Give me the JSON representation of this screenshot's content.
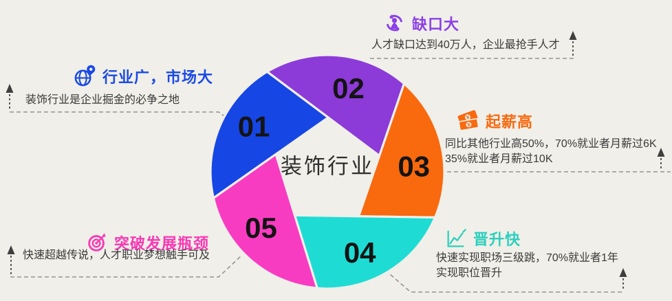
{
  "page": {
    "background": "#f0efe9",
    "text_color": "#3a3a3a"
  },
  "wheel": {
    "center_label": "装饰行业",
    "number_color": "#141414",
    "segments": [
      {
        "label": "01",
        "color": "#1646e4"
      },
      {
        "label": "02",
        "color": "#8c3ad8"
      },
      {
        "label": "03",
        "color": "#f9690e"
      },
      {
        "label": "04",
        "color": "#1edcd4"
      },
      {
        "label": "05",
        "color": "#f83cc2"
      }
    ]
  },
  "callouts": {
    "gap": {
      "title": "缺口大",
      "accent": "#8b40e8",
      "icon": "person-cycle-icon",
      "lines": [
        "人才缺口达到40万人，企业最抢手人才"
      ]
    },
    "industry": {
      "title": "行业广，市场大",
      "accent": "#1a4ae4",
      "icon": "globe-pin-icon",
      "lines": [
        "装饰行业是企业掘金的必争之地"
      ]
    },
    "salary": {
      "title": "起薪高",
      "accent": "#f9690e",
      "icon": "banknotes-icon",
      "lines": [
        "同比其他行业高50%，70%就业者月薪过6K",
        "35%就业者月薪过10K"
      ]
    },
    "promotion": {
      "title": "晋升快",
      "accent": "#2bd0bd",
      "icon": "line-chart-icon",
      "lines": [
        "快速实现职场三级跳，70%就业者1年",
        "实现职位晋升"
      ]
    },
    "breakthrough": {
      "title": "突破发展瓶颈",
      "accent": "#f838b4",
      "icon": "target-icon",
      "lines": [
        "快速超越传说，人才职业梦想触手可及"
      ]
    }
  }
}
